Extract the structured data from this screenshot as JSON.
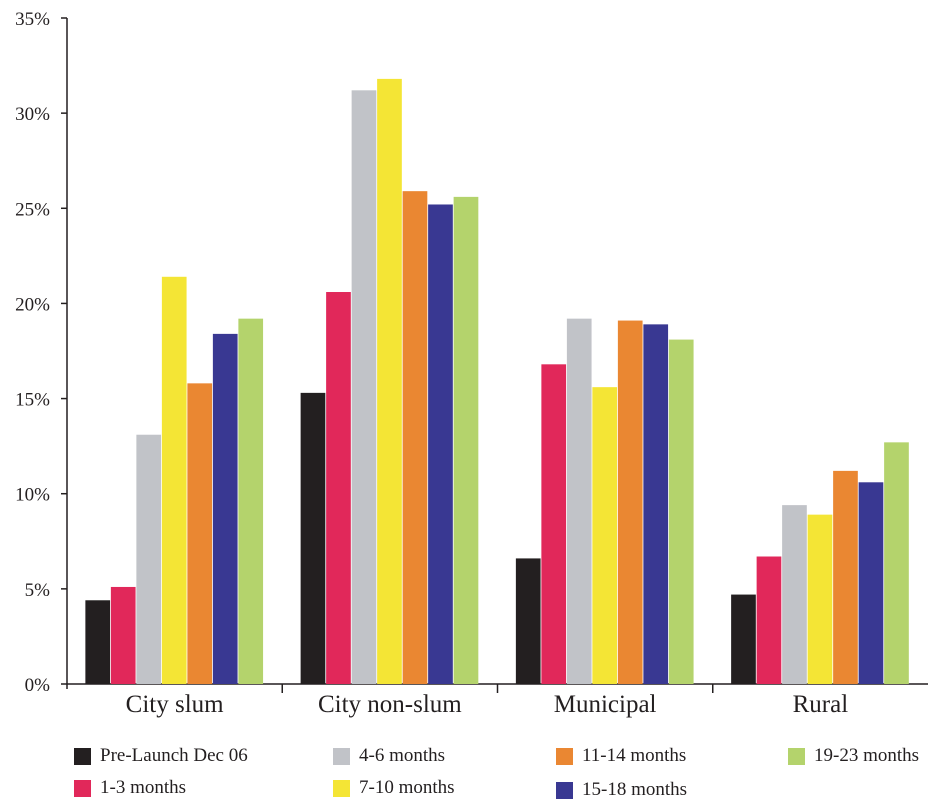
{
  "chart_data": {
    "type": "bar",
    "categories": [
      "City slum",
      "City non-slum",
      "Municipal",
      "Rural"
    ],
    "y_tick_labels": [
      "0%",
      "5%",
      "10%",
      "15%",
      "20%",
      "25%",
      "30%",
      "35%"
    ],
    "ylim": [
      0,
      35
    ],
    "grid": false,
    "legend_position": "bottom",
    "series": [
      {
        "name": "Pre-Launch Dec 06",
        "color": "#231f20",
        "values": [
          4.4,
          15.3,
          6.6,
          4.7
        ]
      },
      {
        "name": "1-3 months",
        "color": "#e1285a",
        "values": [
          5.1,
          20.6,
          16.8,
          6.7
        ]
      },
      {
        "name": "4-6 months",
        "color": "#c1c3c8",
        "values": [
          13.1,
          31.2,
          19.2,
          9.4
        ]
      },
      {
        "name": "7-10 months",
        "color": "#f4e535",
        "values": [
          21.4,
          31.8,
          15.6,
          8.9
        ]
      },
      {
        "name": "11-14 months",
        "color": "#ea8732",
        "values": [
          15.8,
          25.9,
          19.1,
          11.2
        ]
      },
      {
        "name": "15-18 months",
        "color": "#393892",
        "values": [
          18.4,
          25.2,
          18.9,
          10.6
        ]
      },
      {
        "name": "19-23 months",
        "color": "#b4d36c",
        "values": [
          19.2,
          25.6,
          18.1,
          12.7
        ]
      }
    ]
  }
}
